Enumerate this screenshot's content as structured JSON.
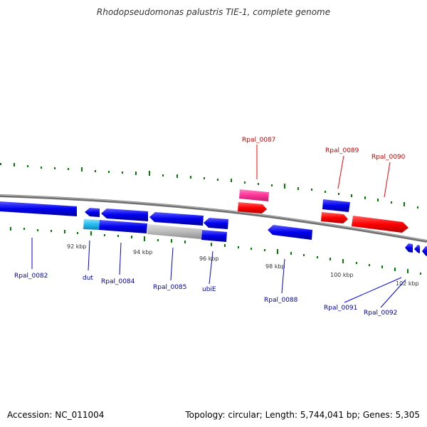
{
  "title": "Rhodopseudomonas palustris TIE-1, complete genome",
  "footer": {
    "accession": "Accession: NC_011004",
    "topology": "Topology: circular; Length: 5,744,041 bp; Genes: 5,305"
  },
  "colors": {
    "forward_gene": "#ff0000",
    "reverse_gene": "#0000ee",
    "rna_gene": "#ff3399",
    "light_blue": "#22bbee",
    "grey_gene": "#bbbbbb",
    "backbone": "#808080",
    "gc_marks": "#008000"
  },
  "ticks": [
    "92 kbp",
    "94 kbp",
    "96 kbp",
    "98 kbp",
    "100 kbp",
    "102 kbp"
  ],
  "labels": {
    "Rpal_0082": "Rpal_0082",
    "dut": "dut",
    "Rpal_0084": "Rpal_0084",
    "Rpal_0085": "Rpal_0085",
    "ubiE": "ubiE",
    "Rpal_0087": "Rpal_0087",
    "Rpal_0088": "Rpal_0088",
    "Rpal_0089": "Rpal_0089",
    "Rpal_0090": "Rpal_0090",
    "Rpal_0091": "Rpal_0091",
    "Rpal_0092": "Rpal_0092"
  }
}
